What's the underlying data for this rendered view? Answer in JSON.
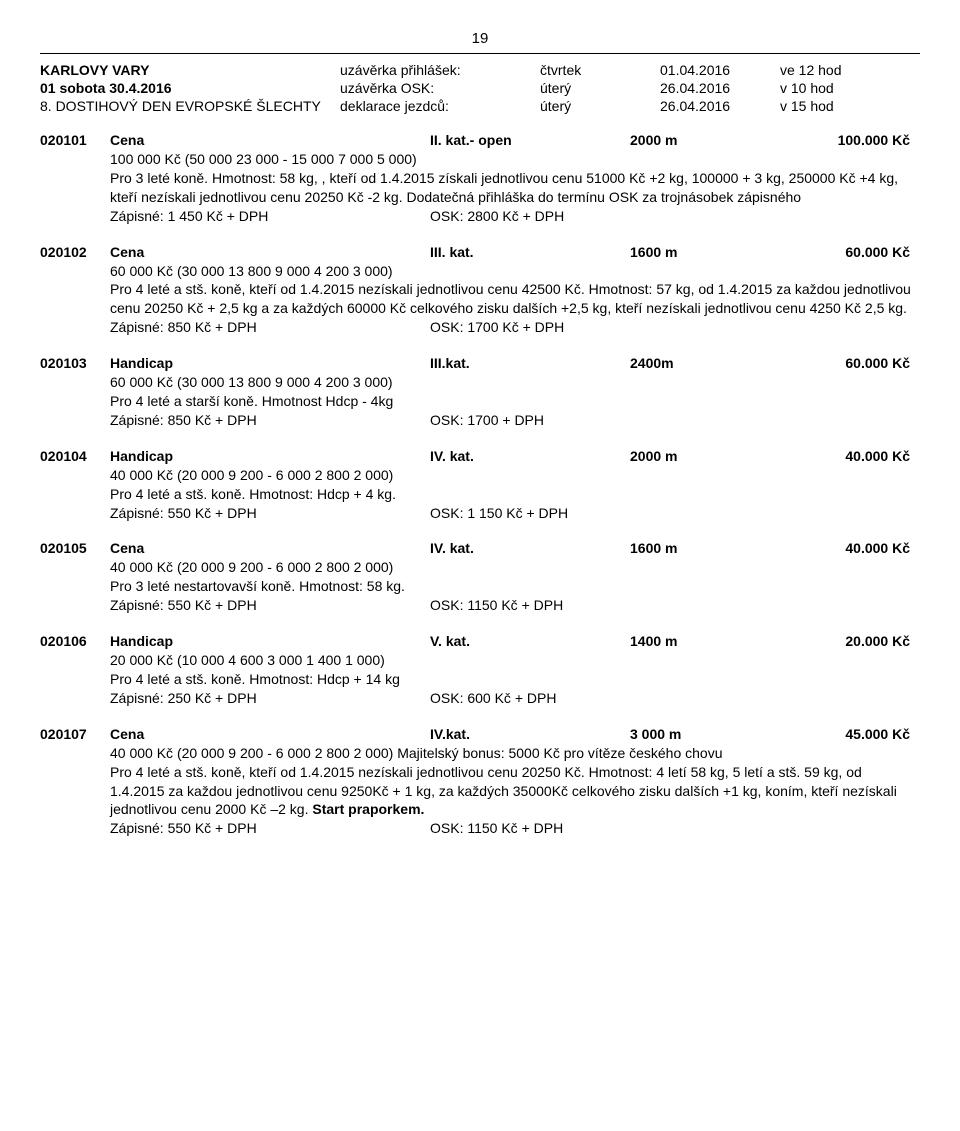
{
  "page_number": "19",
  "header": {
    "rows": [
      {
        "left": "KARLOVY VARY",
        "left_bold": true,
        "mid": "uzávěrka přihlášek:",
        "day": "čtvrtek",
        "date": "01.04.2016",
        "right": "ve 12 hod"
      },
      {
        "left": "01 sobota 30.4.2016",
        "left_bold": true,
        "mid": "uzávěrka OSK:",
        "day": "úterý",
        "date": "26.04.2016",
        "right": "v 10 hod"
      },
      {
        "left": "8. DOSTIHOVÝ DEN EVROPSKÉ ŠLECHTY",
        "left_bold": false,
        "mid": "deklarace jezdců:",
        "day": "úterý",
        "date": "26.04.2016",
        "right": "v 15 hod"
      }
    ]
  },
  "races": [
    {
      "code": "020101",
      "name": "Cena",
      "cat": "II. kat.- open",
      "dist": "2000 m",
      "prize": "100.000 Kč",
      "body_lines": [
        "100 000 Kč (50 000 23 000 - 15 000 7 000 5 000)",
        "Pro 3 leté koně. Hmotnost: 58 kg, ,  kteří od 1.4.2015 získali jednotlivou cenu 51000 Kč +2 kg, 100000 + 3 kg, 250000 Kč +4 kg, kteří nezískali jednotlivou cenu 20250 Kč -2 kg. Dodatečná přihláška do termínu OSK za trojnásobek zápisného"
      ],
      "fee_left": "Zápisné: 1 450 Kč + DPH",
      "fee_right": "OSK: 2800 Kč + DPH"
    },
    {
      "code": "020102",
      "name": "Cena",
      "cat": "III. kat.",
      "dist": "1600 m",
      "prize": "60.000 Kč",
      "body_lines": [
        "60 000 Kč  (30 000   13 800   9 000   4 200   3 000)",
        "Pro 4 leté a stš. koně, kteří od 1.4.2015 nezískali jednotlivou cenu 42500 Kč. Hmotnost: 57 kg, od  1.4.2015 za každou jednotlivou cenu  20250 Kč + 2,5 kg  a za každých 60000 Kč celkového zisku  dalších +2,5 kg, kteří nezískali  jednotlivou cenu 4250 Kč   2,5 kg."
      ],
      "fee_left": "Zápisné: 850 Kč + DPH",
      "fee_right": "OSK:  1700 Kč +  DPH"
    },
    {
      "code": "020103",
      "name": "Handicap",
      "cat": "III.kat.",
      "dist": "2400m",
      "prize": "60.000 Kč",
      "body_lines": [
        "60 000 Kč (30 000   13 800   9 000   4 200   3 000)",
        "Pro 4 leté a starší koně. Hmotnost Hdcp - 4kg"
      ],
      "fee_left": "Zápisné: 850 Kč + DPH",
      "fee_right": "OSK: 1700 + DPH"
    },
    {
      "code": "020104",
      "name": "Handicap",
      "cat": "IV. kat.",
      "dist": "2000 m",
      "prize": "40.000 Kč",
      "body_lines": [
        " 40 000 Kč (20 000   9 200 - 6 000   2 800   2 000)",
        "Pro 4 leté a stš.  koně. Hmotnost: Hdcp   +  4 kg."
      ],
      "fee_left": "Zápisné: 550 Kč + DPH",
      "fee_right": "OSK: 1 150 Kč + DPH"
    },
    {
      "code": "020105",
      "name": "Cena",
      "cat": "IV. kat.",
      "dist": "1600 m",
      "prize": "40.000 Kč",
      "body_lines": [
        "40 000 Kč (20 000   9 200 - 6 000   2 800   2 000)",
        "Pro 3 leté nestartovavší koně. Hmotnost: 58 kg."
      ],
      "fee_left": "Zápisné: 550 Kč + DPH",
      "fee_right": "OSK: 1150  Kč + DPH"
    },
    {
      "code": "020106",
      "name": "Handicap",
      "cat": "V. kat.",
      "dist": "1400 m",
      "prize": "20.000 Kč",
      "body_lines": [
        "20 000 Kč (10 000   4 600   3 000   1 400   1 000)",
        "Pro 4 leté a stš.  koně. Hmotnost:  Hdcp + 14 kg"
      ],
      "fee_left": "Zápisné: 250 Kč + DPH",
      "fee_right": "OSK: 600 Kč + DPH"
    },
    {
      "code": "020107",
      "name": "Cena",
      "cat": "IV.kat.",
      "dist": "3 000 m",
      "prize": "45.000 Kč",
      "body_lines": [
        "40 000 Kč (20 000   9 200 - 6 000   2 800   2 000)  Majitelský bonus: 5000 Kč pro vítěze českého chovu",
        "Pro 4 leté a stš. koně, kteří od 1.4.2015 nezískali jednotlivou cenu 20250 Kč. Hmotnost: 4 letí 58 kg, 5 letí a  stš. 59 kg, od  1.4.2015 za každou jednotlivou cenu  9250Kč + 1 kg, za každých 35000Kč celkového zisku dalších +1 kg, koním, kteří nezískali jednotlivou cenu 2000 Kč –2 kg. Start praporkem."
      ],
      "fee_left": "Zápisné: 550 Kč + DPH",
      "fee_right": "OSK:  1150 Kč  + DPH"
    }
  ]
}
